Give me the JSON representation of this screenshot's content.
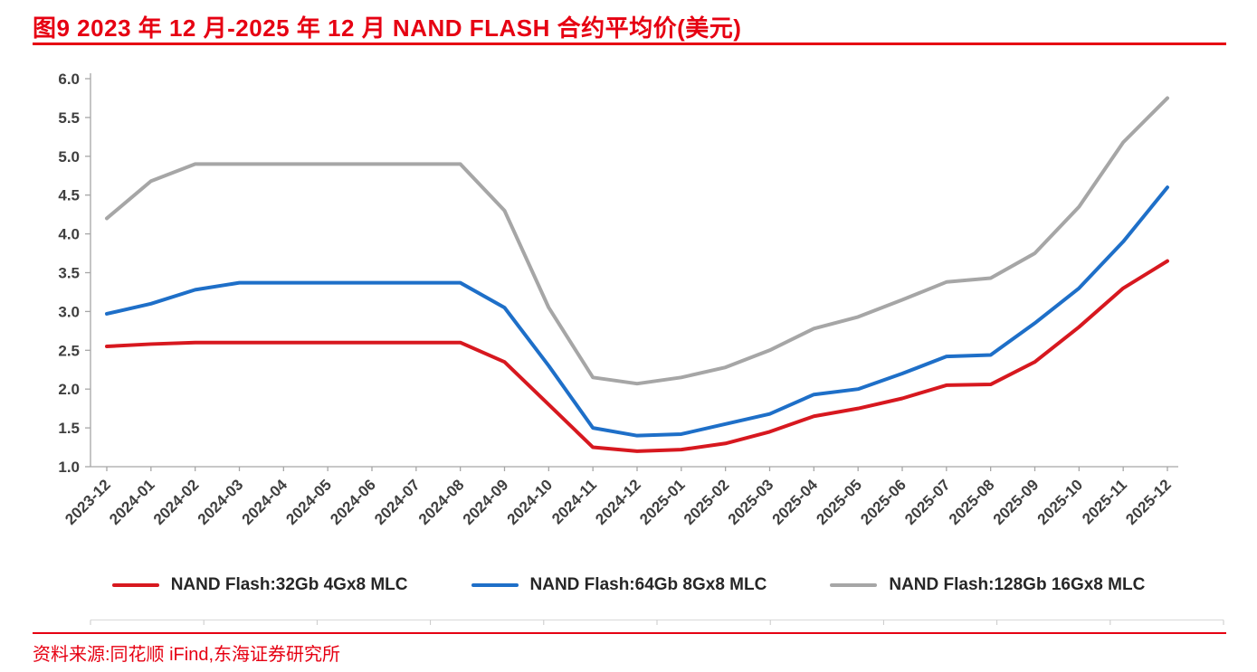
{
  "header": {
    "figure_title": "图9  2023 年 12 月-2025 年 12 月 NAND FLASH 合约平均价(美元)"
  },
  "footer": {
    "source": "资料来源:同花顺 iFind,东海证券研究所"
  },
  "colors": {
    "accent_red": "#E60012",
    "series_red": "#D7181F",
    "series_blue": "#1E6FC8",
    "series_gray": "#A6A6A6",
    "axis_gray": "#A6A6A6",
    "tick_text": "#3f3f3f"
  },
  "chart_data": {
    "type": "line",
    "title": "图9 2023 年 12 月-2025 年 12 月 NAND FLASH 合约平均价(美元)",
    "xlabel": "",
    "ylabel": "",
    "ylim": [
      1.0,
      6.0
    ],
    "ytick_step": 0.5,
    "grid": false,
    "legend_position": "bottom",
    "categories": [
      "2023-12",
      "2024-01",
      "2024-02",
      "2024-03",
      "2024-04",
      "2024-05",
      "2024-06",
      "2024-07",
      "2024-08",
      "2024-09",
      "2024-10",
      "2024-11",
      "2024-12",
      "2025-01",
      "2025-02",
      "2025-03",
      "2025-04",
      "2025-05",
      "2025-06",
      "2025-07",
      "2025-08",
      "2025-09",
      "2025-10",
      "2025-11",
      "2025-12"
    ],
    "series": [
      {
        "name": "NAND Flash:32Gb 4Gx8 MLC",
        "color": "#D7181F",
        "values": [
          2.55,
          2.58,
          2.6,
          2.6,
          2.6,
          2.6,
          2.6,
          2.6,
          2.6,
          2.35,
          1.8,
          1.25,
          1.2,
          1.22,
          1.3,
          1.45,
          1.65,
          1.75,
          1.88,
          2.05,
          2.06,
          2.35,
          2.8,
          3.3,
          3.65
        ]
      },
      {
        "name": "NAND Flash:64Gb 8Gx8 MLC",
        "color": "#1E6FC8",
        "values": [
          2.97,
          3.1,
          3.28,
          3.37,
          3.37,
          3.37,
          3.37,
          3.37,
          3.37,
          3.05,
          2.3,
          1.5,
          1.4,
          1.42,
          1.55,
          1.68,
          1.93,
          2.0,
          2.2,
          2.42,
          2.44,
          2.85,
          3.3,
          3.9,
          4.6
        ]
      },
      {
        "name": "NAND Flash:128Gb 16Gx8 MLC",
        "color": "#A6A6A6",
        "values": [
          4.2,
          4.68,
          4.9,
          4.9,
          4.9,
          4.9,
          4.9,
          4.9,
          4.9,
          4.3,
          3.05,
          2.15,
          2.07,
          2.15,
          2.28,
          2.5,
          2.78,
          2.93,
          3.15,
          3.38,
          3.43,
          3.75,
          4.35,
          5.18,
          5.75
        ]
      }
    ]
  }
}
